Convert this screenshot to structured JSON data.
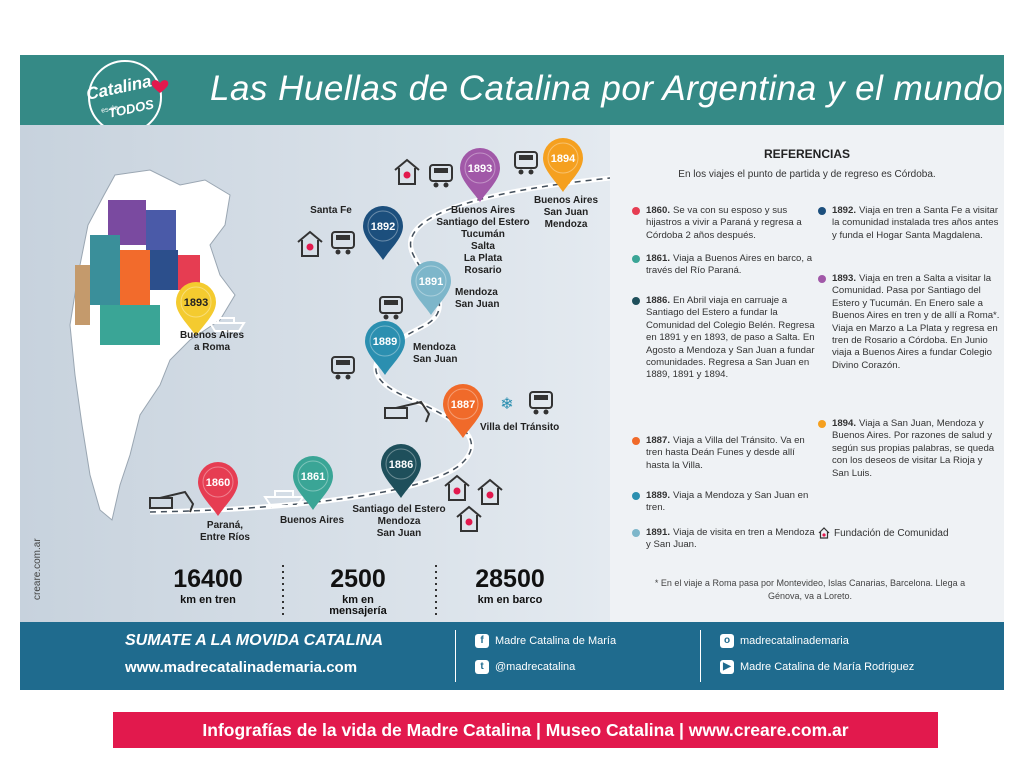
{
  "header": {
    "logo": [
      "Catalina",
      "es de",
      "TODOS"
    ],
    "title": "Las Huellas de Catalina por Argentina y el mundo"
  },
  "map": {
    "pins": [
      {
        "year": "1860",
        "color": "#e63d52",
        "places": [
          "Paraná,",
          "Entre Ríos"
        ]
      },
      {
        "year": "1861",
        "color": "#3aa596",
        "places": [
          "Buenos Aires"
        ]
      },
      {
        "year": "1886",
        "color": "#1e4f5b",
        "places": [
          "Santiago del Estero",
          "Mendoza",
          "San Juan"
        ]
      },
      {
        "year": "1887",
        "color": "#f06a2a",
        "places": [
          "Villa del Tránsito"
        ]
      },
      {
        "year": "1889",
        "color": "#2b8fb0",
        "places": [
          "Mendoza",
          "San Juan"
        ]
      },
      {
        "year": "1891",
        "color": "#7db6ca",
        "places": [
          "Mendoza",
          "San Juan"
        ]
      },
      {
        "year": "1892",
        "color": "#1c4f7d",
        "places": [
          "Santa Fe"
        ]
      },
      {
        "year": "1893",
        "color": "#a158a8",
        "places": [
          "Buenos Aires",
          "Santiago del Estero",
          "Tucumán",
          "Salta",
          "La Plata",
          "Rosario"
        ]
      },
      {
        "year": "1894",
        "color": "#f5a01f",
        "places": [
          "Buenos Aires",
          "San Juan",
          "Mendoza"
        ]
      },
      {
        "year": "1893",
        "color": "#f4cb2f",
        "places": [
          "Buenos Aires",
          "a Roma"
        ]
      }
    ]
  },
  "stats": [
    {
      "value": "16400",
      "label": [
        "km en tren"
      ]
    },
    {
      "value": "2500",
      "label": [
        "km en",
        "mensajería"
      ]
    },
    {
      "value": "28500",
      "label": [
        "km en barco"
      ]
    }
  ],
  "side_text": "creare.com.ar",
  "references": {
    "title": "REFERENCIAS",
    "subtitle": "En los viajes el punto de partida y de regreso es Córdoba.",
    "items": [
      {
        "year": "1860.",
        "color": "#e63d52",
        "text": "Se va con su esposo y sus hijastros a vivir a Paraná y regresa a Córdoba 2 años después."
      },
      {
        "year": "1861.",
        "color": "#3aa596",
        "text": "Viaja a Buenos Aires en barco, a través del Río Paraná."
      },
      {
        "year": "1886.",
        "color": "#1e4f5b",
        "text": "En Abril viaja en carruaje a Santiago del Estero a fundar la Comunidad del Colegio Belén. Regresa en 1891 y en 1893, de paso a Salta. En Agosto a Mendoza y San Juan a fundar comunidades. Regresa a San Juan en 1889, 1891 y 1894."
      },
      {
        "year": "1887.",
        "color": "#f06a2a",
        "text": "Viaja a Villa del Tránsito. Va en tren hasta Deán Funes y desde allí hasta la Villa."
      },
      {
        "year": "1889.",
        "color": "#2b8fb0",
        "text": "Viaja a Mendoza y San Juan en tren."
      },
      {
        "year": "1891.",
        "color": "#7db6ca",
        "text": "Viaja de visita en tren a Mendoza y San Juan."
      },
      {
        "year": "1892.",
        "color": "#1c4f7d",
        "text": "Viaja en tren a Santa Fe a visitar la comunidad instalada tres años antes y funda el Hogar Santa Magdalena."
      },
      {
        "year": "1893.",
        "color": "#a158a8",
        "text": "Viaja en tren a Salta a visitar la Comunidad. Pasa por Santiago del Estero y Tucumán. En Enero sale a Buenos Aires en tren y de allí a Roma*. Viaja en Marzo a La Plata y regresa en tren de Rosario a Córdoba. En Junio viaja a Buenos Aires a fundar Colegio Divino Corazón."
      },
      {
        "year": "1894.",
        "color": "#f5a01f",
        "text": "Viaja a San Juan, Mendoza y Buenos Aires. Por razones de salud y según sus propias palabras, se queda con los deseos de visitar La Rioja y San Luis."
      }
    ],
    "legend": "Fundación de Comunidad",
    "note": "* En el viaje a Roma pasa por Montevideo, Islas Canarias, Barcelona. Llega a Génova, va a Loreto."
  },
  "footer": {
    "slogan": "SUMATE A LA MOVIDA CATALINA",
    "url": "www.madrecatalinademaria.com",
    "social": [
      "Madre Catalina de María",
      "@madrecatalina",
      "madrecatalinademaria",
      "Madre Catalina de María Rodriguez"
    ]
  },
  "caption": "Infografías de la vida de Madre Catalina | Museo Catalina | www.creare.com.ar"
}
